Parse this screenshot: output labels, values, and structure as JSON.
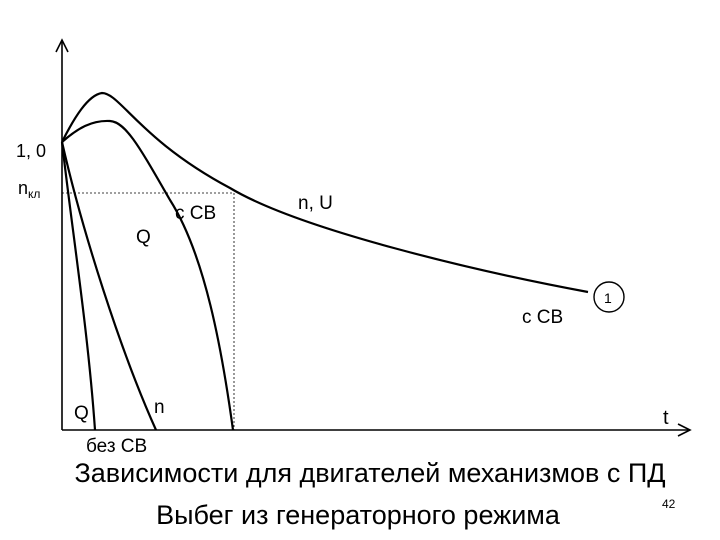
{
  "axis_labels": {
    "one": "1, 0",
    "n_kl_main": "n",
    "n_kl_sub": "кл",
    "t": "t"
  },
  "curve_labels": {
    "q_upper": "Q",
    "s_sv_upper": "с СВ",
    "n_u": "n, U",
    "s_sv_right": "с СВ",
    "marker_1": "1",
    "q_lower": "Q",
    "n_lower": "n",
    "bez_sv": "без СВ"
  },
  "caption": {
    "line1": "Зависимости для двигателей механизмов с ПД",
    "line2": "Выбег из генераторного режима",
    "page_number": "42"
  }
}
